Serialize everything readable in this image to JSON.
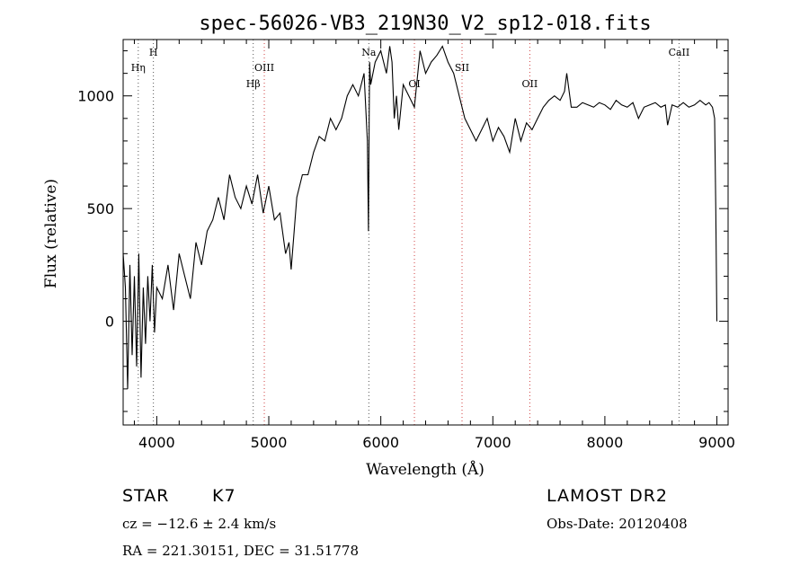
{
  "chart_data": {
    "type": "line",
    "title": "spec-56026-VB3_219N30_V2_sp12-018.fits",
    "xlabel": "Wavelength (Å)",
    "ylabel": "Flux (relative)",
    "xlim": [
      3700,
      9100
    ],
    "ylim": [
      -460,
      1250
    ],
    "x_ticks": [
      4000,
      5000,
      6000,
      7000,
      8000,
      9000
    ],
    "y_ticks": [
      0,
      500,
      1000
    ],
    "grid": false,
    "series": [
      {
        "x": [
          3700,
          3720,
          3740,
          3760,
          3780,
          3800,
          3820,
          3840,
          3860,
          3880,
          3900,
          3920,
          3940,
          3960,
          3980,
          4000,
          4050,
          4100,
          4150,
          4200,
          4250,
          4300,
          4350,
          4400,
          4450,
          4500,
          4550,
          4600,
          4650,
          4700,
          4750,
          4800,
          4850,
          4900,
          4950,
          5000,
          5050,
          5100,
          5150,
          5180,
          5200,
          5250,
          5300,
          5350,
          5400,
          5450,
          5500,
          5550,
          5600,
          5650,
          5700,
          5750,
          5800,
          5850,
          5880,
          5890,
          5896,
          5900,
          5910,
          5950,
          6000,
          6050,
          6080,
          6100,
          6120,
          6140,
          6160,
          6200,
          6250,
          6300,
          6350,
          6400,
          6450,
          6500,
          6550,
          6600,
          6650,
          6700,
          6750,
          6800,
          6850,
          6900,
          6950,
          7000,
          7050,
          7100,
          7150,
          7200,
          7250,
          7300,
          7350,
          7400,
          7450,
          7500,
          7550,
          7600,
          7640,
          7660,
          7700,
          7750,
          7800,
          7850,
          7900,
          7950,
          8000,
          8050,
          8100,
          8150,
          8200,
          8250,
          8300,
          8350,
          8400,
          8450,
          8500,
          8540,
          8560,
          8600,
          8650,
          8700,
          8750,
          8800,
          8850,
          8900,
          8930,
          8960,
          8980,
          8990,
          9000
        ],
        "y": [
          300,
          150,
          -300,
          250,
          -150,
          200,
          -200,
          300,
          -250,
          150,
          -100,
          200,
          0,
          250,
          -50,
          150,
          100,
          250,
          50,
          300,
          200,
          100,
          350,
          250,
          400,
          450,
          550,
          450,
          650,
          550,
          500,
          600,
          520,
          650,
          480,
          600,
          450,
          480,
          300,
          350,
          230,
          550,
          650,
          650,
          750,
          820,
          800,
          900,
          850,
          900,
          1000,
          1050,
          1000,
          1100,
          800,
          400,
          900,
          1150,
          1050,
          1150,
          1200,
          1100,
          1220,
          1150,
          900,
          1000,
          850,
          1050,
          1000,
          950,
          1200,
          1100,
          1150,
          1180,
          1220,
          1150,
          1100,
          1000,
          900,
          850,
          800,
          850,
          900,
          800,
          860,
          820,
          750,
          900,
          800,
          880,
          850,
          900,
          950,
          980,
          1000,
          980,
          1020,
          1100,
          950,
          950,
          970,
          960,
          950,
          970,
          960,
          940,
          980,
          960,
          950,
          970,
          900,
          950,
          960,
          970,
          950,
          960,
          870,
          960,
          950,
          970,
          950,
          960,
          980,
          960,
          970,
          950,
          900,
          500,
          0
        ]
      }
    ],
    "annotations": [
      {
        "label": "Hη",
        "x": 3835
      },
      {
        "label": "H",
        "x": 3970
      },
      {
        "label": "OIII",
        "x": 4960
      },
      {
        "label": "Hβ",
        "x": 4861
      },
      {
        "label": "Na",
        "x": 5893
      },
      {
        "label": "OI",
        "x": 6300
      },
      {
        "label": "SII",
        "x": 6725
      },
      {
        "label": "OII",
        "x": 7330
      },
      {
        "label": "CaII",
        "x": 8662
      }
    ]
  },
  "info": {
    "object_class": "STAR",
    "subclass": "K7",
    "cz": "cz = −12.6 ± 2.4 km/s",
    "coords": "RA = 221.30151, DEC =  31.51778",
    "survey": "LAMOST DR2",
    "obs_date": "Obs-Date: 20120408"
  }
}
